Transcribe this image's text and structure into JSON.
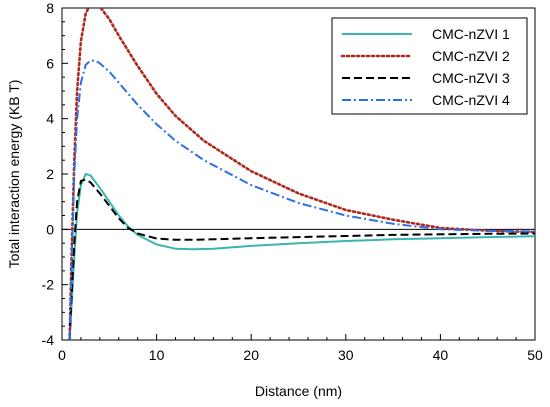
{
  "chart_data": {
    "type": "line",
    "title": "",
    "xlabel": "Distance (nm)",
    "ylabel": "Total interaction energy (KB T)",
    "xlim": [
      0,
      50
    ],
    "ylim": [
      -4,
      8
    ],
    "xticks": [
      0,
      10,
      20,
      30,
      40,
      50
    ],
    "yticks": [
      -4,
      -2,
      0,
      2,
      4,
      6,
      8
    ],
    "grid": false,
    "legend_position": "top-right",
    "series": [
      {
        "name": "CMC-nZVI 1",
        "color": "#3cb4b0",
        "style": "solid",
        "x": [
          0.8,
          1.0,
          1.3,
          1.6,
          2.0,
          2.5,
          3.0,
          4.0,
          5.0,
          6.0,
          7.0,
          8.0,
          10.0,
          12.0,
          14.0,
          16.0,
          20.0,
          25.0,
          30.0,
          35.0,
          40.0,
          45.0,
          50.0
        ],
        "y": [
          -4.0,
          -2.8,
          -1.0,
          0.6,
          1.6,
          2.0,
          1.95,
          1.5,
          1.0,
          0.5,
          0.1,
          -0.2,
          -0.55,
          -0.7,
          -0.72,
          -0.7,
          -0.6,
          -0.5,
          -0.42,
          -0.36,
          -0.32,
          -0.28,
          -0.25
        ]
      },
      {
        "name": "CMC-nZVI 2",
        "color": "#b0281c",
        "style": "dotted",
        "x": [
          0.8,
          1.0,
          1.3,
          1.6,
          2.0,
          2.5,
          3.0,
          3.5,
          4.0,
          5.0,
          6.0,
          8.0,
          10.0,
          12.0,
          15.0,
          20.0,
          25.0,
          30.0,
          35.0,
          40.0,
          45.0,
          50.0
        ],
        "y": [
          -4.0,
          -1.0,
          2.5,
          5.0,
          6.8,
          7.8,
          8.15,
          8.15,
          8.05,
          7.6,
          7.0,
          5.9,
          4.9,
          4.1,
          3.2,
          2.1,
          1.3,
          0.7,
          0.35,
          0.05,
          -0.05,
          -0.1
        ]
      },
      {
        "name": "CMC-nZVI 3",
        "color": "#000000",
        "style": "dashed",
        "x": [
          0.8,
          1.0,
          1.3,
          1.6,
          2.0,
          2.5,
          3.0,
          4.0,
          5.0,
          6.0,
          7.0,
          8.0,
          10.0,
          12.0,
          14.0,
          16.0,
          20.0,
          25.0,
          30.0,
          35.0,
          40.0,
          45.0,
          50.0
        ],
        "y": [
          -4.0,
          -2.5,
          -0.5,
          1.0,
          1.75,
          1.8,
          1.7,
          1.3,
          0.85,
          0.4,
          0.05,
          -0.15,
          -0.33,
          -0.38,
          -0.38,
          -0.36,
          -0.32,
          -0.28,
          -0.24,
          -0.2,
          -0.18,
          -0.16,
          -0.15
        ]
      },
      {
        "name": "CMC-nZVI 4",
        "color": "#2e6ee6",
        "style": "dashdot",
        "x": [
          0.8,
          1.0,
          1.3,
          1.6,
          2.0,
          2.5,
          3.0,
          3.5,
          4.0,
          5.0,
          6.0,
          8.0,
          10.0,
          12.0,
          15.0,
          20.0,
          25.0,
          30.0,
          35.0,
          40.0,
          45.0,
          50.0
        ],
        "y": [
          -4.0,
          -1.5,
          2.0,
          4.0,
          5.3,
          5.95,
          6.1,
          6.1,
          6.0,
          5.7,
          5.3,
          4.5,
          3.8,
          3.2,
          2.5,
          1.6,
          0.95,
          0.5,
          0.2,
          0.0,
          -0.05,
          -0.08
        ]
      }
    ]
  }
}
